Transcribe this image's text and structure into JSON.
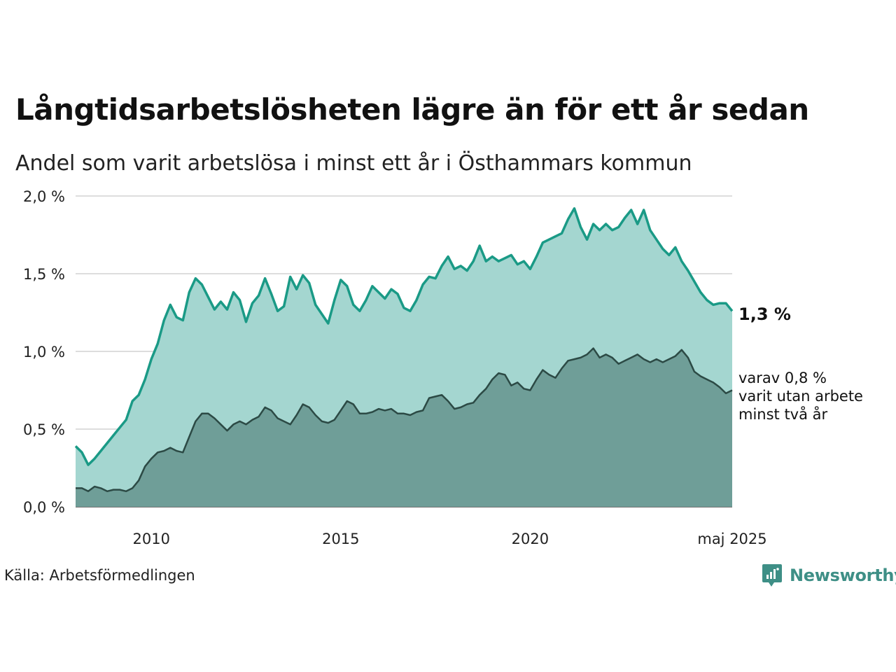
{
  "header": {
    "title": "Långtidsarbetslösheten lägre än för ett år sedan",
    "subtitle": "Andel som varit arbetslösa i minst ett år i Östhammars kommun"
  },
  "footer": {
    "source": "Källa: Arbetsförmedlingen",
    "brand": "Newsworthy",
    "brand_color": "#3e8f86"
  },
  "chart_data": {
    "type": "area",
    "x_range": [
      "2008-01",
      "2025-05"
    ],
    "ylim": [
      0,
      2.0
    ],
    "grid": true,
    "y_ticks": [
      {
        "value": 0.0,
        "label": "0,0 %"
      },
      {
        "value": 0.5,
        "label": "0,5 %"
      },
      {
        "value": 1.0,
        "label": "1,0 %"
      },
      {
        "value": 1.5,
        "label": "1,5 %"
      },
      {
        "value": 2.0,
        "label": "2,0 %"
      }
    ],
    "x_ticks": [
      {
        "value": "2010-01",
        "label": "2010"
      },
      {
        "value": "2015-01",
        "label": "2015"
      },
      {
        "value": "2020-01",
        "label": "2020"
      },
      {
        "value": "2025-05",
        "label": "maj 2025"
      }
    ],
    "series": [
      {
        "color_line": "#1a9a86",
        "color_fill": "#a4d6d0",
        "end_label": "1,3 %",
        "points": [
          [
            "2008-01",
            0.39
          ],
          [
            "2008-03",
            0.35
          ],
          [
            "2008-05",
            0.27
          ],
          [
            "2008-07",
            0.31
          ],
          [
            "2008-09",
            0.36
          ],
          [
            "2008-11",
            0.41
          ],
          [
            "2009-01",
            0.46
          ],
          [
            "2009-03",
            0.51
          ],
          [
            "2009-05",
            0.56
          ],
          [
            "2009-07",
            0.68
          ],
          [
            "2009-09",
            0.72
          ],
          [
            "2009-11",
            0.82
          ],
          [
            "2010-01",
            0.95
          ],
          [
            "2010-03",
            1.05
          ],
          [
            "2010-05",
            1.2
          ],
          [
            "2010-07",
            1.3
          ],
          [
            "2010-09",
            1.22
          ],
          [
            "2010-11",
            1.2
          ],
          [
            "2011-01",
            1.38
          ],
          [
            "2011-03",
            1.47
          ],
          [
            "2011-05",
            1.43
          ],
          [
            "2011-07",
            1.35
          ],
          [
            "2011-09",
            1.27
          ],
          [
            "2011-11",
            1.32
          ],
          [
            "2012-01",
            1.27
          ],
          [
            "2012-03",
            1.38
          ],
          [
            "2012-05",
            1.33
          ],
          [
            "2012-07",
            1.19
          ],
          [
            "2012-09",
            1.31
          ],
          [
            "2012-11",
            1.36
          ],
          [
            "2013-01",
            1.47
          ],
          [
            "2013-03",
            1.37
          ],
          [
            "2013-05",
            1.26
          ],
          [
            "2013-07",
            1.29
          ],
          [
            "2013-09",
            1.48
          ],
          [
            "2013-11",
            1.4
          ],
          [
            "2014-01",
            1.49
          ],
          [
            "2014-03",
            1.44
          ],
          [
            "2014-05",
            1.3
          ],
          [
            "2014-07",
            1.24
          ],
          [
            "2014-09",
            1.18
          ],
          [
            "2014-11",
            1.33
          ],
          [
            "2015-01",
            1.46
          ],
          [
            "2015-03",
            1.42
          ],
          [
            "2015-05",
            1.3
          ],
          [
            "2015-07",
            1.26
          ],
          [
            "2015-09",
            1.33
          ],
          [
            "2015-11",
            1.42
          ],
          [
            "2016-01",
            1.38
          ],
          [
            "2016-03",
            1.34
          ],
          [
            "2016-05",
            1.4
          ],
          [
            "2016-07",
            1.37
          ],
          [
            "2016-09",
            1.28
          ],
          [
            "2016-11",
            1.26
          ],
          [
            "2017-01",
            1.33
          ],
          [
            "2017-03",
            1.43
          ],
          [
            "2017-05",
            1.48
          ],
          [
            "2017-07",
            1.47
          ],
          [
            "2017-09",
            1.55
          ],
          [
            "2017-11",
            1.61
          ],
          [
            "2018-01",
            1.53
          ],
          [
            "2018-03",
            1.55
          ],
          [
            "2018-05",
            1.52
          ],
          [
            "2018-07",
            1.58
          ],
          [
            "2018-09",
            1.68
          ],
          [
            "2018-11",
            1.58
          ],
          [
            "2019-01",
            1.61
          ],
          [
            "2019-03",
            1.58
          ],
          [
            "2019-05",
            1.6
          ],
          [
            "2019-07",
            1.62
          ],
          [
            "2019-09",
            1.56
          ],
          [
            "2019-11",
            1.58
          ],
          [
            "2020-01",
            1.53
          ],
          [
            "2020-03",
            1.61
          ],
          [
            "2020-05",
            1.7
          ],
          [
            "2020-07",
            1.72
          ],
          [
            "2020-09",
            1.74
          ],
          [
            "2020-11",
            1.76
          ],
          [
            "2021-01",
            1.85
          ],
          [
            "2021-03",
            1.92
          ],
          [
            "2021-05",
            1.8
          ],
          [
            "2021-07",
            1.72
          ],
          [
            "2021-09",
            1.82
          ],
          [
            "2021-11",
            1.78
          ],
          [
            "2022-01",
            1.82
          ],
          [
            "2022-03",
            1.78
          ],
          [
            "2022-05",
            1.8
          ],
          [
            "2022-07",
            1.86
          ],
          [
            "2022-09",
            1.91
          ],
          [
            "2022-11",
            1.82
          ],
          [
            "2023-01",
            1.91
          ],
          [
            "2023-03",
            1.78
          ],
          [
            "2023-05",
            1.72
          ],
          [
            "2023-07",
            1.66
          ],
          [
            "2023-09",
            1.62
          ],
          [
            "2023-11",
            1.67
          ],
          [
            "2024-01",
            1.58
          ],
          [
            "2024-03",
            1.52
          ],
          [
            "2024-05",
            1.45
          ],
          [
            "2024-07",
            1.38
          ],
          [
            "2024-09",
            1.33
          ],
          [
            "2024-11",
            1.3
          ],
          [
            "2025-01",
            1.31
          ],
          [
            "2025-03",
            1.31
          ],
          [
            "2025-05",
            1.26
          ]
        ]
      },
      {
        "color_line": "#2c4a45",
        "color_fill": "#6f9e98",
        "end_label": "varav 0,8 %",
        "end_label_lines": [
          "varit utan arbete",
          "minst två år"
        ],
        "points": [
          [
            "2008-01",
            0.12
          ],
          [
            "2008-03",
            0.12
          ],
          [
            "2008-05",
            0.1
          ],
          [
            "2008-07",
            0.13
          ],
          [
            "2008-09",
            0.12
          ],
          [
            "2008-11",
            0.1
          ],
          [
            "2009-01",
            0.11
          ],
          [
            "2009-03",
            0.11
          ],
          [
            "2009-05",
            0.1
          ],
          [
            "2009-07",
            0.12
          ],
          [
            "2009-09",
            0.17
          ],
          [
            "2009-11",
            0.26
          ],
          [
            "2010-01",
            0.31
          ],
          [
            "2010-03",
            0.35
          ],
          [
            "2010-05",
            0.36
          ],
          [
            "2010-07",
            0.38
          ],
          [
            "2010-09",
            0.36
          ],
          [
            "2010-11",
            0.35
          ],
          [
            "2011-01",
            0.45
          ],
          [
            "2011-03",
            0.55
          ],
          [
            "2011-05",
            0.6
          ],
          [
            "2011-07",
            0.6
          ],
          [
            "2011-09",
            0.57
          ],
          [
            "2011-11",
            0.53
          ],
          [
            "2012-01",
            0.49
          ],
          [
            "2012-03",
            0.53
          ],
          [
            "2012-05",
            0.55
          ],
          [
            "2012-07",
            0.53
          ],
          [
            "2012-09",
            0.56
          ],
          [
            "2012-11",
            0.58
          ],
          [
            "2013-01",
            0.64
          ],
          [
            "2013-03",
            0.62
          ],
          [
            "2013-05",
            0.57
          ],
          [
            "2013-07",
            0.55
          ],
          [
            "2013-09",
            0.53
          ],
          [
            "2013-11",
            0.59
          ],
          [
            "2014-01",
            0.66
          ],
          [
            "2014-03",
            0.64
          ],
          [
            "2014-05",
            0.59
          ],
          [
            "2014-07",
            0.55
          ],
          [
            "2014-09",
            0.54
          ],
          [
            "2014-11",
            0.56
          ],
          [
            "2015-01",
            0.62
          ],
          [
            "2015-03",
            0.68
          ],
          [
            "2015-05",
            0.66
          ],
          [
            "2015-07",
            0.6
          ],
          [
            "2015-09",
            0.6
          ],
          [
            "2015-11",
            0.61
          ],
          [
            "2016-01",
            0.63
          ],
          [
            "2016-03",
            0.62
          ],
          [
            "2016-05",
            0.63
          ],
          [
            "2016-07",
            0.6
          ],
          [
            "2016-09",
            0.6
          ],
          [
            "2016-11",
            0.59
          ],
          [
            "2017-01",
            0.61
          ],
          [
            "2017-03",
            0.62
          ],
          [
            "2017-05",
            0.7
          ],
          [
            "2017-07",
            0.71
          ],
          [
            "2017-09",
            0.72
          ],
          [
            "2017-11",
            0.68
          ],
          [
            "2018-01",
            0.63
          ],
          [
            "2018-03",
            0.64
          ],
          [
            "2018-05",
            0.66
          ],
          [
            "2018-07",
            0.67
          ],
          [
            "2018-09",
            0.72
          ],
          [
            "2018-11",
            0.76
          ],
          [
            "2019-01",
            0.82
          ],
          [
            "2019-03",
            0.86
          ],
          [
            "2019-05",
            0.85
          ],
          [
            "2019-07",
            0.78
          ],
          [
            "2019-09",
            0.8
          ],
          [
            "2019-11",
            0.76
          ],
          [
            "2020-01",
            0.75
          ],
          [
            "2020-03",
            0.82
          ],
          [
            "2020-05",
            0.88
          ],
          [
            "2020-07",
            0.85
          ],
          [
            "2020-09",
            0.83
          ],
          [
            "2020-11",
            0.89
          ],
          [
            "2021-01",
            0.94
          ],
          [
            "2021-03",
            0.95
          ],
          [
            "2021-05",
            0.96
          ],
          [
            "2021-07",
            0.98
          ],
          [
            "2021-09",
            1.02
          ],
          [
            "2021-11",
            0.96
          ],
          [
            "2022-01",
            0.98
          ],
          [
            "2022-03",
            0.96
          ],
          [
            "2022-05",
            0.92
          ],
          [
            "2022-07",
            0.94
          ],
          [
            "2022-09",
            0.96
          ],
          [
            "2022-11",
            0.98
          ],
          [
            "2023-01",
            0.95
          ],
          [
            "2023-03",
            0.93
          ],
          [
            "2023-05",
            0.95
          ],
          [
            "2023-07",
            0.93
          ],
          [
            "2023-09",
            0.95
          ],
          [
            "2023-11",
            0.97
          ],
          [
            "2024-01",
            1.01
          ],
          [
            "2024-03",
            0.96
          ],
          [
            "2024-05",
            0.87
          ],
          [
            "2024-07",
            0.84
          ],
          [
            "2024-09",
            0.82
          ],
          [
            "2024-11",
            0.8
          ],
          [
            "2025-01",
            0.77
          ],
          [
            "2025-03",
            0.73
          ],
          [
            "2025-05",
            0.75
          ]
        ]
      }
    ]
  }
}
